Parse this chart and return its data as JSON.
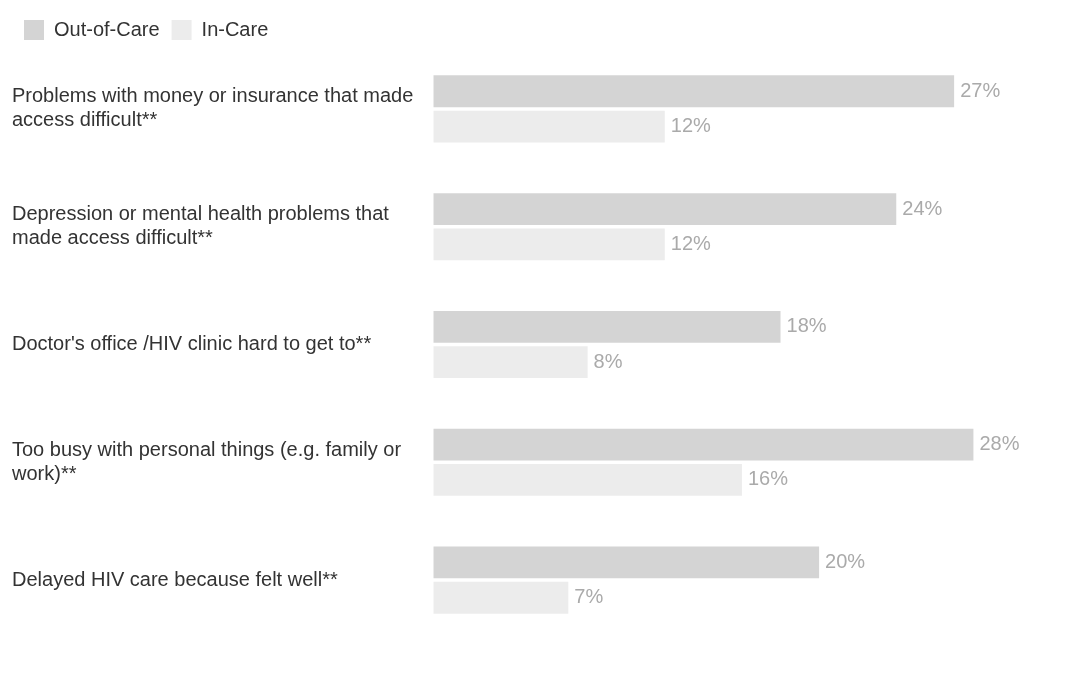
{
  "chart_data": {
    "type": "bar",
    "orientation": "horizontal",
    "categories": [
      "Problems with money or insurance that made access difficult**",
      "Depression or mental health problems that made access difficult**",
      "Doctor's office /HIV clinic hard to get to**",
      "Too busy with personal things (e.g. family or work)**",
      "Delayed HIV care because felt well**"
    ],
    "series": [
      {
        "name": "Out-of-Care",
        "color": "#d4d4d4",
        "values": [
          27,
          24,
          18,
          28,
          20
        ],
        "value_labels": [
          "27%",
          "24%",
          "18%",
          "28%",
          "20%"
        ]
      },
      {
        "name": "In-Care",
        "color": "#ececec",
        "values": [
          12,
          12,
          8,
          16,
          7
        ],
        "value_labels": [
          "12%",
          "12%",
          "8%",
          "16%",
          "7%"
        ]
      }
    ],
    "legend": "top left",
    "grid": false
  }
}
